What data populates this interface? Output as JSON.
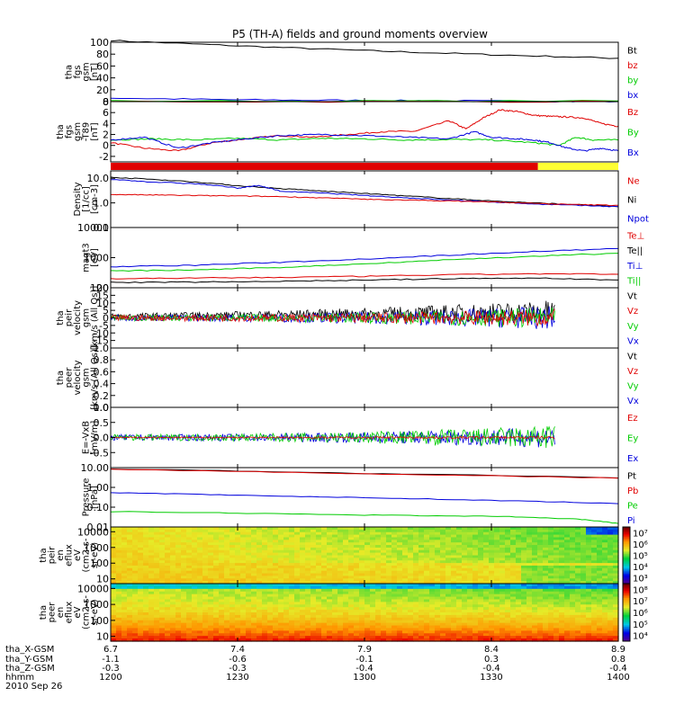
{
  "title": "P5 (TH-A) fields and ground moments overview",
  "date": "2010 Sep 26",
  "colors": {
    "black": "#000000",
    "red": "#e00000",
    "green": "#00cc00",
    "blue": "#0000dd",
    "yellow": "#ffff33"
  },
  "time_axis": {
    "range_hhmm": [
      "1200",
      "1400"
    ],
    "tick_labels": [
      "1200",
      "1230",
      "1300",
      "1330",
      "1400"
    ]
  },
  "position_rows": [
    {
      "label": "tha_X-GSM",
      "values": [
        "6.7",
        "7.4",
        "7.9",
        "8.4",
        "8.9"
      ]
    },
    {
      "label": "tha_Y-GSM",
      "values": [
        "-1.1",
        "-0.6",
        "-0.1",
        "0.3",
        "0.8"
      ]
    },
    {
      "label": "tha_Z-GSM",
      "values": [
        "-0.3",
        "-0.3",
        "-0.4",
        "-0.4",
        "-0.4"
      ]
    },
    {
      "label": "hhmm",
      "values": [
        "1200",
        "1230",
        "1300",
        "1330",
        "1400"
      ]
    }
  ],
  "chart_data": [
    {
      "id": "fgs_gsm",
      "type": "line",
      "ylabel": [
        "tha",
        "fgs",
        "gsm",
        "[nT]"
      ],
      "ylim": [
        0,
        100
      ],
      "ticks": [
        "0",
        "20",
        "40",
        "60",
        "80",
        "100"
      ],
      "legend": [
        {
          "name": "Bt",
          "color": "black"
        },
        {
          "name": "bz",
          "color": "red"
        },
        {
          "name": "by",
          "color": "green"
        },
        {
          "name": "bx",
          "color": "blue"
        }
      ],
      "series": [
        {
          "name": "Bt",
          "color": "black",
          "x": [
            0,
            30,
            60,
            90,
            120
          ],
          "y": [
            103,
            94,
            86,
            79,
            73
          ]
        },
        {
          "name": "bx",
          "color": "blue",
          "x": [
            0,
            30,
            60,
            90,
            120
          ],
          "y": [
            6,
            3,
            2,
            1,
            0
          ]
        },
        {
          "name": "by",
          "color": "green",
          "x": [
            0,
            120
          ],
          "y": [
            1,
            1
          ]
        },
        {
          "name": "bz",
          "color": "red",
          "x": [
            0,
            120
          ],
          "y": [
            0,
            0
          ]
        }
      ]
    },
    {
      "id": "fgs_t89",
      "type": "line",
      "ylabel": [
        "tha",
        "fgs",
        "gsm",
        "-T89",
        "[nT]"
      ],
      "ylim": [
        -3,
        8
      ],
      "ticks": [
        "-2",
        "0",
        "2",
        "4",
        "6",
        "8"
      ],
      "legend": [
        {
          "name": "Bz",
          "color": "red"
        },
        {
          "name": "By",
          "color": "green"
        },
        {
          "name": "Bx",
          "color": "blue"
        }
      ],
      "series": [
        {
          "name": "Bz",
          "color": "red",
          "x": [
            0,
            8,
            16,
            24,
            32,
            40,
            48,
            56,
            64,
            72,
            80,
            84,
            88,
            92,
            96,
            100,
            104,
            108,
            112,
            116,
            120
          ],
          "y": [
            0.5,
            -0.5,
            -1,
            0.5,
            1.2,
            1.8,
            1.5,
            2,
            2.5,
            2.6,
            4.5,
            3,
            5,
            6.5,
            6.2,
            5.5,
            5.3,
            5.2,
            5,
            4,
            3.5
          ]
        },
        {
          "name": "By",
          "color": "green",
          "x": [
            0,
            10,
            20,
            30,
            40,
            50,
            60,
            70,
            80,
            90,
            100,
            106,
            110,
            114,
            120
          ],
          "y": [
            1,
            1.2,
            1,
            1.3,
            1,
            1.3,
            1.2,
            1,
            1.1,
            1,
            0.5,
            0,
            1.5,
            1,
            1
          ]
        },
        {
          "name": "Bx",
          "color": "blue",
          "x": [
            0,
            8,
            16,
            24,
            32,
            40,
            50,
            60,
            70,
            80,
            86,
            90,
            96,
            100,
            104,
            108,
            112,
            116,
            120
          ],
          "y": [
            1,
            1.5,
            -0.5,
            0.5,
            1.2,
            1.8,
            2,
            1.8,
            1.5,
            1.2,
            2.5,
            1.5,
            1.2,
            1,
            0.5,
            -0.5,
            -1,
            -0.5,
            -1
          ]
        }
      ],
      "mode_bar": [
        {
          "from": 0,
          "to": 101,
          "color": "red"
        },
        {
          "from": 101,
          "to": 120,
          "color": "yellow"
        }
      ]
    },
    {
      "id": "density",
      "type": "line",
      "scale": "log",
      "ylabel": [
        "Density",
        "[1/cc]",
        "[cm-3]"
      ],
      "ylim": [
        0.1,
        20
      ],
      "ticks": [
        "0.1",
        "1.0",
        "10.0"
      ],
      "legend": [
        {
          "name": "Ne",
          "color": "red"
        },
        {
          "name": "Ni",
          "color": "black"
        },
        {
          "name": "Npot",
          "color": "blue"
        }
      ],
      "series": [
        {
          "name": "Ni",
          "color": "black",
          "x": [
            0,
            10,
            20,
            30,
            40,
            50,
            60,
            70,
            80,
            90,
            100,
            110,
            120
          ],
          "y": [
            11,
            9,
            7,
            5,
            3.8,
            3,
            2.4,
            1.9,
            1.5,
            1.2,
            1.0,
            0.85,
            0.7
          ]
        },
        {
          "name": "Npot",
          "color": "blue",
          "x": [
            0,
            10,
            20,
            30,
            35,
            40,
            50,
            60,
            70,
            80,
            90,
            100,
            110,
            120
          ],
          "y": [
            9,
            7,
            6,
            4,
            5,
            3,
            2.5,
            2,
            1.6,
            1.3,
            1.1,
            0.9,
            0.8,
            0.7
          ]
        },
        {
          "name": "Ne",
          "color": "red",
          "x": [
            0,
            10,
            20,
            30,
            40,
            50,
            60,
            70,
            80,
            90,
            100,
            110,
            120
          ],
          "y": [
            2.2,
            2.1,
            2.0,
            1.9,
            1.8,
            1.6,
            1.4,
            1.3,
            1.2,
            1.1,
            0.95,
            0.85,
            0.8
          ]
        }
      ]
    },
    {
      "id": "magt3",
      "type": "line",
      "scale": "log",
      "ylabel": [
        "magt3",
        "[eV]"
      ],
      "ylim": [
        100,
        10000
      ],
      "ticks": [
        "100",
        "1000",
        "10000"
      ],
      "legend": [
        {
          "name": "Te⊥",
          "color": "red"
        },
        {
          "name": "Te||",
          "color": "black"
        },
        {
          "name": "Ti⊥",
          "color": "blue"
        },
        {
          "name": "Ti||",
          "color": "green"
        }
      ],
      "series": [
        {
          "name": "Ti⊥",
          "color": "blue",
          "x": [
            0,
            20,
            40,
            60,
            80,
            100,
            120
          ],
          "y": [
            500,
            560,
            700,
            900,
            1200,
            1600,
            2000
          ]
        },
        {
          "name": "Ti||",
          "color": "green",
          "x": [
            0,
            20,
            40,
            60,
            80,
            100,
            120
          ],
          "y": [
            360,
            390,
            470,
            620,
            850,
            1100,
            1400
          ]
        },
        {
          "name": "Te⊥",
          "color": "red",
          "x": [
            0,
            20,
            40,
            60,
            80,
            100,
            120
          ],
          "y": [
            200,
            210,
            220,
            240,
            270,
            290,
            280
          ]
        },
        {
          "name": "Te||",
          "color": "black",
          "x": [
            0,
            20,
            40,
            60,
            80,
            100,
            120
          ],
          "y": [
            150,
            155,
            165,
            180,
            200,
            210,
            180
          ]
        }
      ]
    },
    {
      "id": "peir_velocity",
      "type": "line",
      "ylabel": [
        "tha",
        "peir",
        "velocity",
        "gsm",
        "[km/s (All Qs)]"
      ],
      "ylim": [
        -20,
        20
      ],
      "ticks": [
        "-15",
        "-10",
        "-5",
        "0",
        "5",
        "10",
        "15",
        "20"
      ],
      "legend": [
        {
          "name": "Vt",
          "color": "black"
        },
        {
          "name": "Vz",
          "color": "red"
        },
        {
          "name": "Vy",
          "color": "green"
        },
        {
          "name": "Vx",
          "color": "blue"
        }
      ],
      "data_end_x": 105,
      "noise": [
        {
          "name": "Vt",
          "color": "black",
          "center": [
            1,
            4
          ],
          "amp": [
            2,
            8
          ]
        },
        {
          "name": "Vx",
          "color": "blue",
          "center": [
            0,
            0
          ],
          "amp": [
            2,
            8
          ]
        },
        {
          "name": "Vy",
          "color": "green",
          "center": [
            0,
            0
          ],
          "amp": [
            2,
            7
          ]
        },
        {
          "name": "Vz",
          "color": "red",
          "center": [
            0,
            0
          ],
          "amp": [
            2,
            6
          ]
        }
      ]
    },
    {
      "id": "peer_velocity",
      "type": "line",
      "ylabel": [
        "tha",
        "peer",
        "velocity",
        "gsm",
        "[km/s (All Qs)]"
      ],
      "ylim": [
        0,
        1
      ],
      "ticks": [
        "0.0",
        "0.2",
        "0.4",
        "0.6",
        "0.8",
        "1.0"
      ],
      "legend": [
        {
          "name": "Vt",
          "color": "black"
        },
        {
          "name": "Vz",
          "color": "red"
        },
        {
          "name": "Vy",
          "color": "green"
        },
        {
          "name": "Vx",
          "color": "blue"
        }
      ]
    },
    {
      "id": "efield",
      "type": "line",
      "ylabel": [
        "E=-VxB",
        "[mV/m]"
      ],
      "ylim": [
        -1.0,
        1.0
      ],
      "ticks": [
        "-0.5",
        "0.0",
        "0.5",
        "1.0"
      ],
      "legend": [
        {
          "name": "Ez",
          "color": "red"
        },
        {
          "name": "Ey",
          "color": "green"
        },
        {
          "name": "Ex",
          "color": "blue"
        }
      ],
      "data_end_x": 105,
      "noise": [
        {
          "name": "Ex",
          "color": "blue",
          "center": [
            0,
            0
          ],
          "amp": [
            0.1,
            0.35
          ]
        },
        {
          "name": "Ey",
          "color": "green",
          "center": [
            0,
            0
          ],
          "amp": [
            0.1,
            0.4
          ]
        },
        {
          "name": "Ez",
          "color": "red",
          "center": [
            0,
            0
          ],
          "amp": [
            0.02,
            0.05
          ]
        }
      ]
    },
    {
      "id": "pressure",
      "type": "line",
      "scale": "log",
      "ylabel": [
        "Pressure",
        "[nPa]"
      ],
      "ylim": [
        0.01,
        10
      ],
      "ticks": [
        "0.01",
        "0.10",
        "1.00",
        "10.00"
      ],
      "legend": [
        {
          "name": "Pt",
          "color": "black"
        },
        {
          "name": "Pb",
          "color": "red"
        },
        {
          "name": "Pe",
          "color": "green"
        },
        {
          "name": "Pi",
          "color": "blue"
        }
      ],
      "series": [
        {
          "name": "Pt",
          "color": "black",
          "x": [
            0,
            60,
            120
          ],
          "y": [
            8.5,
            5,
            3
          ]
        },
        {
          "name": "Pb",
          "color": "red",
          "x": [
            0,
            60,
            120
          ],
          "y": [
            8.2,
            4.8,
            2.9
          ]
        },
        {
          "name": "Pi",
          "color": "blue",
          "x": [
            0,
            30,
            60,
            90,
            120
          ],
          "y": [
            0.55,
            0.4,
            0.3,
            0.22,
            0.15
          ]
        },
        {
          "name": "Pe",
          "color": "green",
          "x": [
            0,
            30,
            60,
            90,
            110,
            120
          ],
          "y": [
            0.06,
            0.05,
            0.04,
            0.035,
            0.025,
            0.015
          ]
        }
      ]
    },
    {
      "id": "peir_spec",
      "type": "heatmap",
      "scale": "log",
      "ylabel": [
        "tha",
        "peir",
        "en",
        "eflux",
        "eV",
        "(cm2-s-",
        "sr-eV)"
      ],
      "ylim": [
        5,
        20000
      ],
      "ticks": [
        "10",
        "100",
        "1000",
        "10000"
      ],
      "colorbar": {
        "range": [
          100,
          10000000
        ],
        "ticks": [
          "10³",
          "10⁴",
          "10⁵",
          "10⁶",
          "10⁷"
        ]
      }
    },
    {
      "id": "peer_spec",
      "type": "heatmap",
      "scale": "log",
      "ylabel": [
        "tha",
        "peer",
        "en",
        "eflux",
        "eV",
        "(cm2-s-",
        "sr-eV)"
      ],
      "ylim": [
        5,
        20000
      ],
      "ticks": [
        "10",
        "100",
        "1000",
        "10000"
      ],
      "colorbar": {
        "range": [
          5000,
          100000000
        ],
        "ticks": [
          "10⁴",
          "10⁵",
          "10⁶",
          "10⁷",
          "10⁸"
        ]
      }
    }
  ]
}
